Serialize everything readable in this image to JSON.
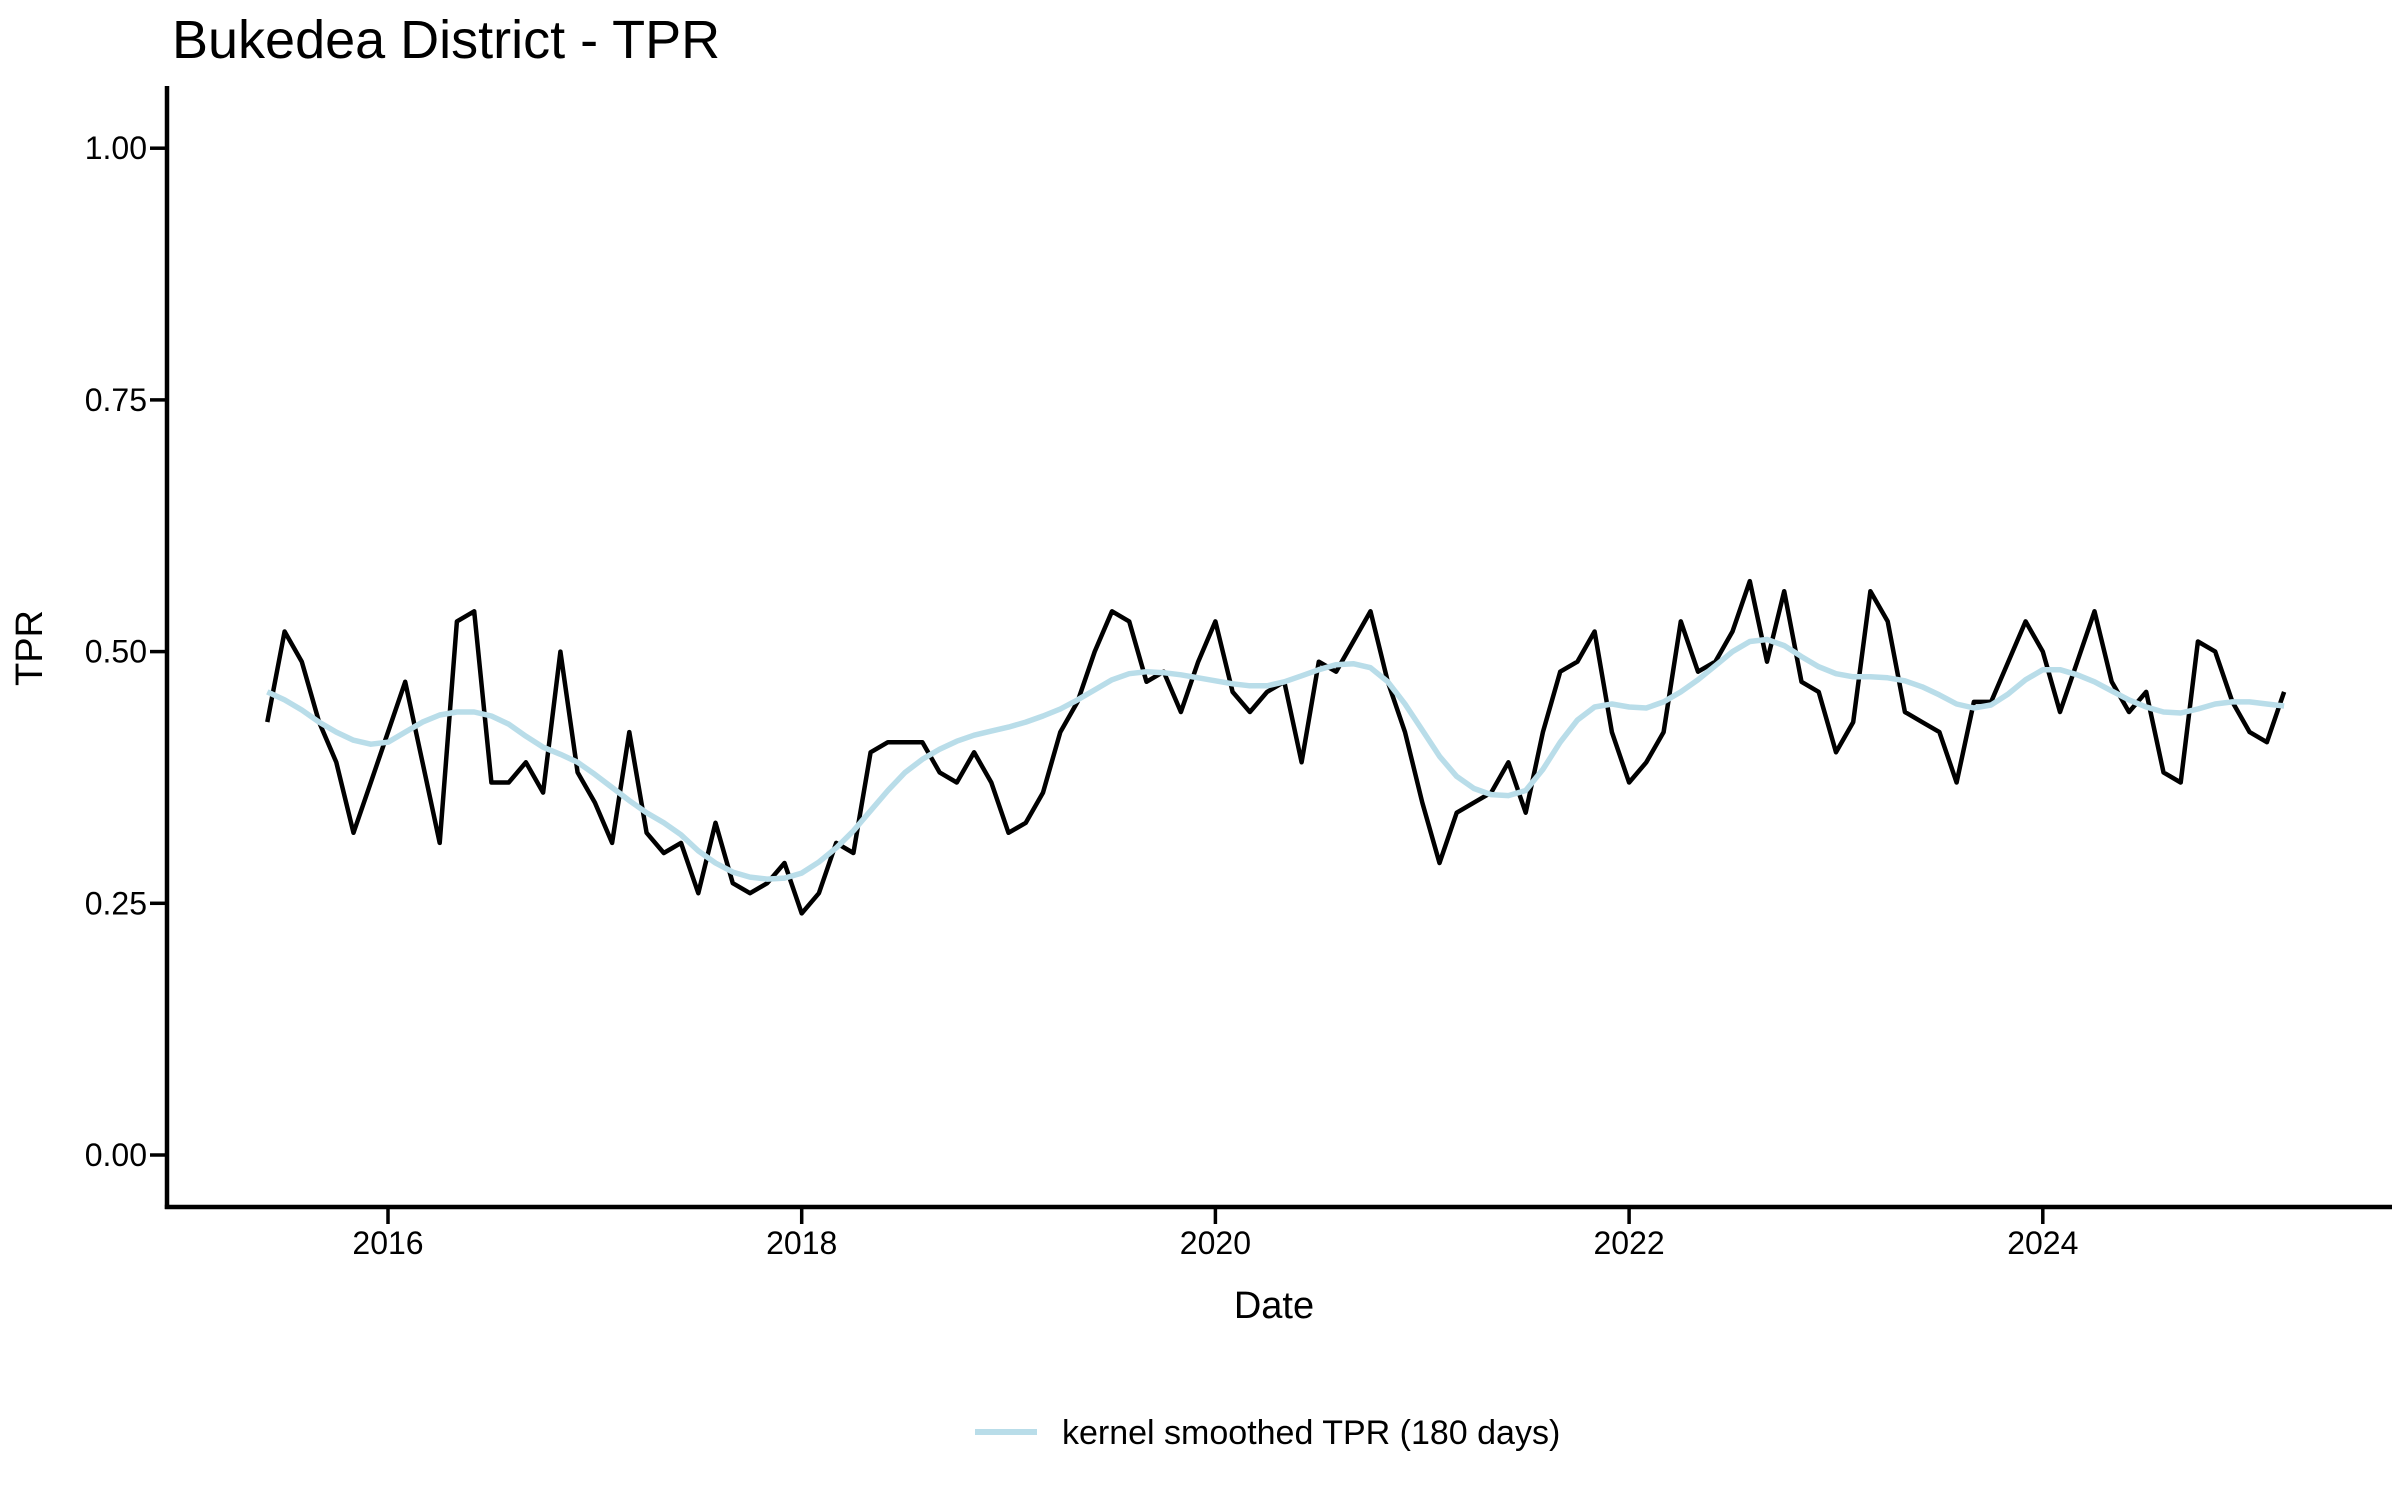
{
  "title": "Bukedea District - TPR",
  "axes": {
    "x_label": "Date",
    "y_label": "TPR",
    "y_tick_labels": [
      "0.00",
      "0.25",
      "0.50",
      "0.75",
      "1.00"
    ],
    "y_tick_values": [
      0,
      0.25,
      0.5,
      0.75,
      1.0
    ],
    "x_tick_labels": [
      "2016",
      "2018",
      "2020",
      "2022",
      "2024"
    ],
    "x_tick_values": [
      2016,
      2018,
      2020,
      2022,
      2024
    ]
  },
  "legend": {
    "label": "kernel smoothed TPR (180 days)",
    "line_color": "#b9dde9"
  },
  "colors": {
    "tpr_line": "#000000",
    "smoothed_line": "#b9dde9",
    "axis": "#000000",
    "background": "#ffffff"
  },
  "chart_data": {
    "type": "line",
    "title": "Bukedea District - TPR",
    "xlabel": "Date",
    "ylabel": "TPR",
    "ylim": [
      0,
      1.0
    ],
    "x_axis_range_years": [
      2015.25,
      2025.6
    ],
    "grid": false,
    "legend_position": "bottom",
    "x_months": [
      "2015-06",
      "2015-07",
      "2015-08",
      "2015-09",
      "2015-10",
      "2015-11",
      "2015-12",
      "2016-01",
      "2016-02",
      "2016-03",
      "2016-04",
      "2016-05",
      "2016-06",
      "2016-07",
      "2016-08",
      "2016-09",
      "2016-10",
      "2016-11",
      "2016-12",
      "2017-01",
      "2017-02",
      "2017-03",
      "2017-04",
      "2017-05",
      "2017-06",
      "2017-07",
      "2017-08",
      "2017-09",
      "2017-10",
      "2017-11",
      "2017-12",
      "2018-01",
      "2018-02",
      "2018-03",
      "2018-04",
      "2018-05",
      "2018-06",
      "2018-07",
      "2018-08",
      "2018-09",
      "2018-10",
      "2018-11",
      "2018-12",
      "2019-01",
      "2019-02",
      "2019-03",
      "2019-04",
      "2019-05",
      "2019-06",
      "2019-07",
      "2019-08",
      "2019-09",
      "2019-10",
      "2019-11",
      "2019-12",
      "2020-01",
      "2020-02",
      "2020-03",
      "2020-04",
      "2020-05",
      "2020-06",
      "2020-07",
      "2020-08",
      "2020-09",
      "2020-10",
      "2020-11",
      "2020-12",
      "2021-01",
      "2021-02",
      "2021-03",
      "2021-04",
      "2021-05",
      "2021-06",
      "2021-07",
      "2021-08",
      "2021-09",
      "2021-10",
      "2021-11",
      "2021-12",
      "2022-01",
      "2022-02",
      "2022-03",
      "2022-04",
      "2022-05",
      "2022-06",
      "2022-07",
      "2022-08",
      "2022-09",
      "2022-10",
      "2022-11",
      "2022-12",
      "2023-01",
      "2023-02",
      "2023-03",
      "2023-04",
      "2023-05",
      "2023-06",
      "2023-07",
      "2023-08",
      "2023-09",
      "2023-10",
      "2023-11",
      "2023-12",
      "2024-01",
      "2024-02",
      "2024-03",
      "2024-04",
      "2024-05",
      "2024-06",
      "2024-07",
      "2024-08",
      "2024-09",
      "2024-10",
      "2024-11",
      "2024-12",
      "2025-01",
      "2025-02",
      "2025-03"
    ],
    "series": [
      {
        "name": "TPR",
        "color": "#000000",
        "values": [
          0.43,
          0.52,
          0.49,
          0.43,
          0.39,
          0.32,
          0.37,
          0.42,
          0.47,
          0.39,
          0.31,
          0.53,
          0.54,
          0.37,
          0.37,
          0.39,
          0.36,
          0.5,
          0.38,
          0.35,
          0.31,
          0.42,
          0.32,
          0.3,
          0.31,
          0.26,
          0.33,
          0.27,
          0.26,
          0.27,
          0.29,
          0.24,
          0.26,
          0.31,
          0.3,
          0.4,
          0.41,
          0.41,
          0.41,
          0.38,
          0.37,
          0.4,
          0.37,
          0.32,
          0.33,
          0.36,
          0.42,
          0.45,
          0.5,
          0.54,
          0.53,
          0.47,
          0.48,
          0.44,
          0.49,
          0.53,
          0.46,
          0.44,
          0.46,
          0.47,
          0.39,
          0.49,
          0.48,
          0.51,
          0.54,
          0.47,
          0.42,
          0.35,
          0.29,
          0.34,
          0.35,
          0.36,
          0.39,
          0.34,
          0.42,
          0.48,
          0.49,
          0.52,
          0.42,
          0.37,
          0.39,
          0.42,
          0.53,
          0.48,
          0.49,
          0.52,
          0.57,
          0.49,
          0.56,
          0.47,
          0.46,
          0.4,
          0.43,
          0.56,
          0.53,
          0.44,
          0.43,
          0.42,
          0.37,
          0.45,
          0.45,
          0.49,
          0.53,
          0.5,
          0.44,
          0.49,
          0.54,
          0.47,
          0.44,
          0.46,
          0.38,
          0.37,
          0.51,
          0.5,
          0.45,
          0.42,
          0.41,
          0.46
        ]
      },
      {
        "name": "kernel smoothed TPR (180 days)",
        "color": "#b9dde9",
        "values": [
          0.46,
          0.452,
          0.442,
          0.43,
          0.42,
          0.412,
          0.408,
          0.41,
          0.42,
          0.43,
          0.437,
          0.44,
          0.44,
          0.436,
          0.428,
          0.416,
          0.405,
          0.398,
          0.39,
          0.378,
          0.365,
          0.352,
          0.34,
          0.33,
          0.318,
          0.302,
          0.29,
          0.281,
          0.276,
          0.274,
          0.275,
          0.28,
          0.291,
          0.305,
          0.322,
          0.342,
          0.362,
          0.38,
          0.393,
          0.403,
          0.411,
          0.417,
          0.421,
          0.425,
          0.43,
          0.436,
          0.443,
          0.452,
          0.462,
          0.472,
          0.478,
          0.48,
          0.479,
          0.477,
          0.474,
          0.471,
          0.468,
          0.466,
          0.466,
          0.47,
          0.476,
          0.482,
          0.487,
          0.488,
          0.484,
          0.47,
          0.448,
          0.422,
          0.396,
          0.376,
          0.364,
          0.358,
          0.357,
          0.362,
          0.383,
          0.41,
          0.432,
          0.445,
          0.448,
          0.445,
          0.444,
          0.45,
          0.46,
          0.472,
          0.486,
          0.5,
          0.51,
          0.512,
          0.506,
          0.495,
          0.485,
          0.478,
          0.475,
          0.475,
          0.474,
          0.471,
          0.465,
          0.457,
          0.448,
          0.444,
          0.447,
          0.458,
          0.472,
          0.482,
          0.482,
          0.477,
          0.47,
          0.461,
          0.452,
          0.445,
          0.44,
          0.439,
          0.443,
          0.448,
          0.45,
          0.45,
          0.448,
          0.446
        ]
      }
    ]
  }
}
